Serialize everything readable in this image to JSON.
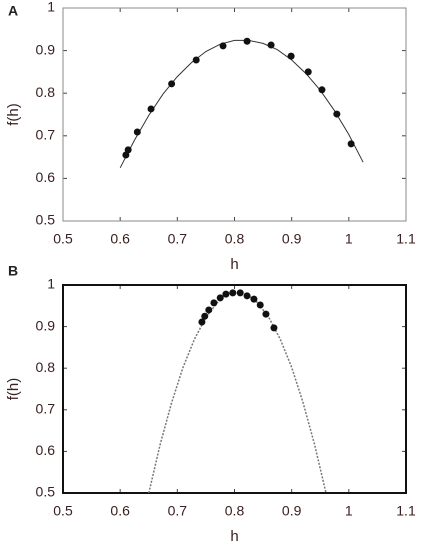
{
  "chart_data": [
    {
      "type": "scatter",
      "panel": "A",
      "xlabel": "h",
      "ylabel": "f(h)",
      "xlim": [
        0.5,
        1.1
      ],
      "xticks": [
        0.5,
        0.6,
        0.7,
        0.8,
        0.9,
        1,
        1.1
      ],
      "ylim": [
        0.5,
        1
      ],
      "yticks": [
        0.5,
        0.6,
        0.7,
        0.8,
        0.9,
        1
      ],
      "point_color": "#111111",
      "curve_color": "#333333",
      "curve_style": "solid",
      "frame_color": "#888888",
      "points": {
        "x": [
          0.61,
          0.614,
          0.63,
          0.654,
          0.69,
          0.733,
          0.78,
          0.822,
          0.864,
          0.899,
          0.929,
          0.953,
          0.979,
          1.004
        ],
        "y": [
          0.655,
          0.667,
          0.709,
          0.763,
          0.822,
          0.878,
          0.911,
          0.922,
          0.913,
          0.887,
          0.85,
          0.808,
          0.751,
          0.681
        ]
      },
      "curve": {
        "x": [
          0.6,
          0.625,
          0.65,
          0.675,
          0.7,
          0.725,
          0.75,
          0.775,
          0.8,
          0.825,
          0.85,
          0.875,
          0.9,
          0.925,
          0.95,
          0.975,
          1.0,
          1.025
        ],
        "y": [
          0.625,
          0.69,
          0.748,
          0.798,
          0.839,
          0.872,
          0.898,
          0.915,
          0.924,
          0.924,
          0.917,
          0.902,
          0.878,
          0.846,
          0.807,
          0.759,
          0.703,
          0.638
        ]
      }
    },
    {
      "type": "scatter",
      "panel": "B",
      "xlabel": "h",
      "ylabel": "f(h)",
      "xlim": [
        0.5,
        1.1
      ],
      "xticks": [
        0.5,
        0.6,
        0.7,
        0.8,
        0.9,
        1,
        1.1
      ],
      "ylim": [
        0.5,
        1
      ],
      "yticks": [
        0.5,
        0.6,
        0.7,
        0.8,
        0.9,
        1
      ],
      "point_color": "#111111",
      "curve_color": "#777777",
      "curve_style": "dotted",
      "frame_color": "#111111",
      "points": {
        "x": [
          0.743,
          0.748,
          0.755,
          0.764,
          0.775,
          0.785,
          0.797,
          0.81,
          0.822,
          0.834,
          0.845,
          0.855,
          0.869
        ],
        "y": [
          0.911,
          0.925,
          0.94,
          0.957,
          0.969,
          0.978,
          0.981,
          0.981,
          0.974,
          0.966,
          0.952,
          0.93,
          0.897
        ]
      },
      "curve": {
        "x": [
          0.65,
          0.67,
          0.69,
          0.71,
          0.73,
          0.75,
          0.77,
          0.79,
          0.805,
          0.82,
          0.84,
          0.86,
          0.88,
          0.9,
          0.92,
          0.94,
          0.96
        ],
        "y": [
          0.5,
          0.617,
          0.717,
          0.802,
          0.87,
          0.922,
          0.958,
          0.979,
          0.983,
          0.979,
          0.958,
          0.922,
          0.87,
          0.802,
          0.717,
          0.617,
          0.5
        ]
      }
    }
  ]
}
